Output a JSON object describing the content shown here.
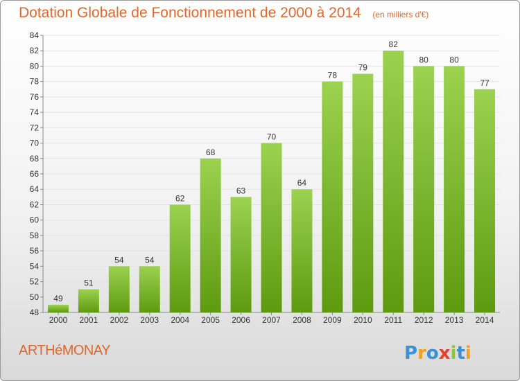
{
  "header": {
    "title": "Dotation Globale de Fonctionnement de 2000 à 2014",
    "unit": "(en milliers d'€)"
  },
  "footer": {
    "commune": "ARTHéMONAY",
    "logo_text": "Proxiti"
  },
  "colors": {
    "title": "#e0672b",
    "bar_top": "#9bd24f",
    "bar_bottom": "#5e9a10",
    "grid": "#e3e3e3"
  },
  "chart_data": {
    "type": "bar",
    "title": "Dotation Globale de Fonctionnement de 2000 à 2014",
    "xlabel": "",
    "ylabel": "",
    "categories": [
      "2000",
      "2001",
      "2002",
      "2003",
      "2004",
      "2005",
      "2006",
      "2007",
      "2008",
      "2009",
      "2010",
      "2011",
      "2012",
      "2013",
      "2014"
    ],
    "values": [
      49,
      51,
      54,
      54,
      62,
      68,
      63,
      70,
      64,
      78,
      79,
      82,
      80,
      80,
      77
    ],
    "ylim": [
      48,
      84
    ],
    "ytick_step": 2,
    "grid": true,
    "data_labels": true
  }
}
